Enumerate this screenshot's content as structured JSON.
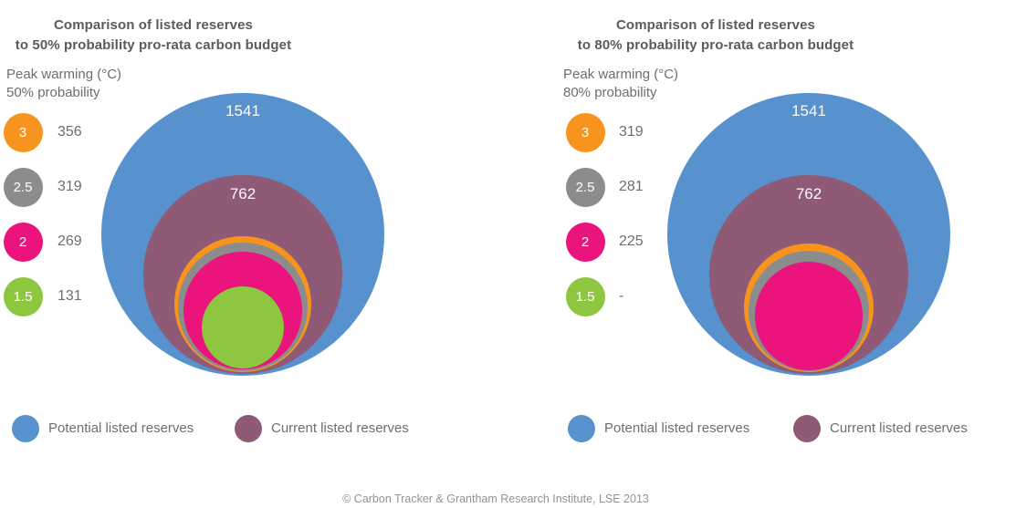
{
  "colors": {
    "blue": "#5792CF",
    "purple": "#8E5A76",
    "orange": "#F7941E",
    "gray": "#8A8C8E",
    "pink": "#EB137C",
    "green": "#8DC63F"
  },
  "charts": [
    {
      "title_line1": "Comparison of listed reserves",
      "title_line2": "to 50% probability pro-rata carbon budget",
      "legend_title_line1": "Peak warming (°C)",
      "legend_title_line2": "50% probability",
      "legend_items": [
        {
          "id": "3c",
          "circle_label": "3",
          "value": "356",
          "color": "orange"
        },
        {
          "id": "2-5c",
          "circle_label": "2.5",
          "value": "319",
          "color": "gray"
        },
        {
          "id": "2c",
          "circle_label": "2",
          "value": "269",
          "color": "pink"
        },
        {
          "id": "1-5c",
          "circle_label": "1.5",
          "value": "131",
          "color": "green"
        }
      ],
      "bubbles": [
        {
          "name": "potential-listed-reserves",
          "value": 1541,
          "label": "1541",
          "color": "blue"
        },
        {
          "name": "current-listed-reserves",
          "value": 762,
          "label": "762",
          "color": "purple"
        },
        {
          "name": "budget-3c",
          "value": 356,
          "color": "orange"
        },
        {
          "name": "budget-2-5c",
          "value": 319,
          "color": "gray"
        },
        {
          "name": "budget-2c",
          "value": 269,
          "color": "pink"
        },
        {
          "name": "budget-1-5c",
          "value": 131,
          "color": "green"
        }
      ]
    },
    {
      "title_line1": "Comparison of listed reserves",
      "title_line2": "to 80% probability pro-rata carbon budget",
      "legend_title_line1": "Peak warming (°C)",
      "legend_title_line2": "80% probability",
      "legend_items": [
        {
          "id": "3c",
          "circle_label": "3",
          "value": "319",
          "color": "orange"
        },
        {
          "id": "2-5c",
          "circle_label": "2.5",
          "value": "281",
          "color": "gray"
        },
        {
          "id": "2c",
          "circle_label": "2",
          "value": "225",
          "color": "pink"
        },
        {
          "id": "1-5c",
          "circle_label": "1.5",
          "value": "-",
          "color": "green"
        }
      ],
      "bubbles": [
        {
          "name": "potential-listed-reserves",
          "value": 1541,
          "label": "1541",
          "color": "blue"
        },
        {
          "name": "current-listed-reserves",
          "value": 762,
          "label": "762",
          "color": "purple"
        },
        {
          "name": "budget-3c",
          "value": 319,
          "color": "orange"
        },
        {
          "name": "budget-2-5c",
          "value": 281,
          "color": "gray"
        },
        {
          "name": "budget-2c",
          "value": 225,
          "color": "pink"
        }
      ]
    }
  ],
  "bottom_legend": {
    "items": [
      {
        "label": "Potential listed reserves",
        "color": "blue"
      },
      {
        "label": "Current listed reserves",
        "color": "purple"
      }
    ]
  },
  "footer": "© Carbon Tracker & Grantham Research Institute, LSE 2013",
  "chart_data": [
    {
      "type": "bubble",
      "subtype": "nested-circles-bottom-aligned",
      "title": "Comparison of listed reserves to 50% probability pro-rata carbon budget",
      "legend_title": "Peak warming (°C) 50% probability",
      "area_proportional_to_value": true,
      "circles": [
        {
          "label": "Potential listed reserves",
          "value": 1541,
          "color": "#5792CF"
        },
        {
          "label": "Current listed reserves",
          "value": 762,
          "color": "#8E5A76"
        },
        {
          "label": "Carbon budget, peak warming 3°C",
          "value": 356,
          "color": "#F7941E"
        },
        {
          "label": "Carbon budget, peak warming 2.5°C",
          "value": 319,
          "color": "#8A8C8E"
        },
        {
          "label": "Carbon budget, peak warming 2°C",
          "value": 269,
          "color": "#EB137C"
        },
        {
          "label": "Carbon budget, peak warming 1.5°C",
          "value": 131,
          "color": "#8DC63F"
        }
      ]
    },
    {
      "type": "bubble",
      "subtype": "nested-circles-bottom-aligned",
      "title": "Comparison of listed reserves to 80% probability pro-rata carbon budget",
      "legend_title": "Peak warming (°C) 80% probability",
      "area_proportional_to_value": true,
      "circles": [
        {
          "label": "Potential listed reserves",
          "value": 1541,
          "color": "#5792CF"
        },
        {
          "label": "Current listed reserves",
          "value": 762,
          "color": "#8E5A76"
        },
        {
          "label": "Carbon budget, peak warming 3°C",
          "value": 319,
          "color": "#F7941E"
        },
        {
          "label": "Carbon budget, peak warming 2.5°C",
          "value": 281,
          "color": "#8A8C8E"
        },
        {
          "label": "Carbon budget, peak warming 2°C",
          "value": 225,
          "color": "#EB137C"
        },
        {
          "label": "Carbon budget, peak warming 1.5°C",
          "value": null,
          "display": "-",
          "color": "#8DC63F"
        }
      ]
    }
  ]
}
